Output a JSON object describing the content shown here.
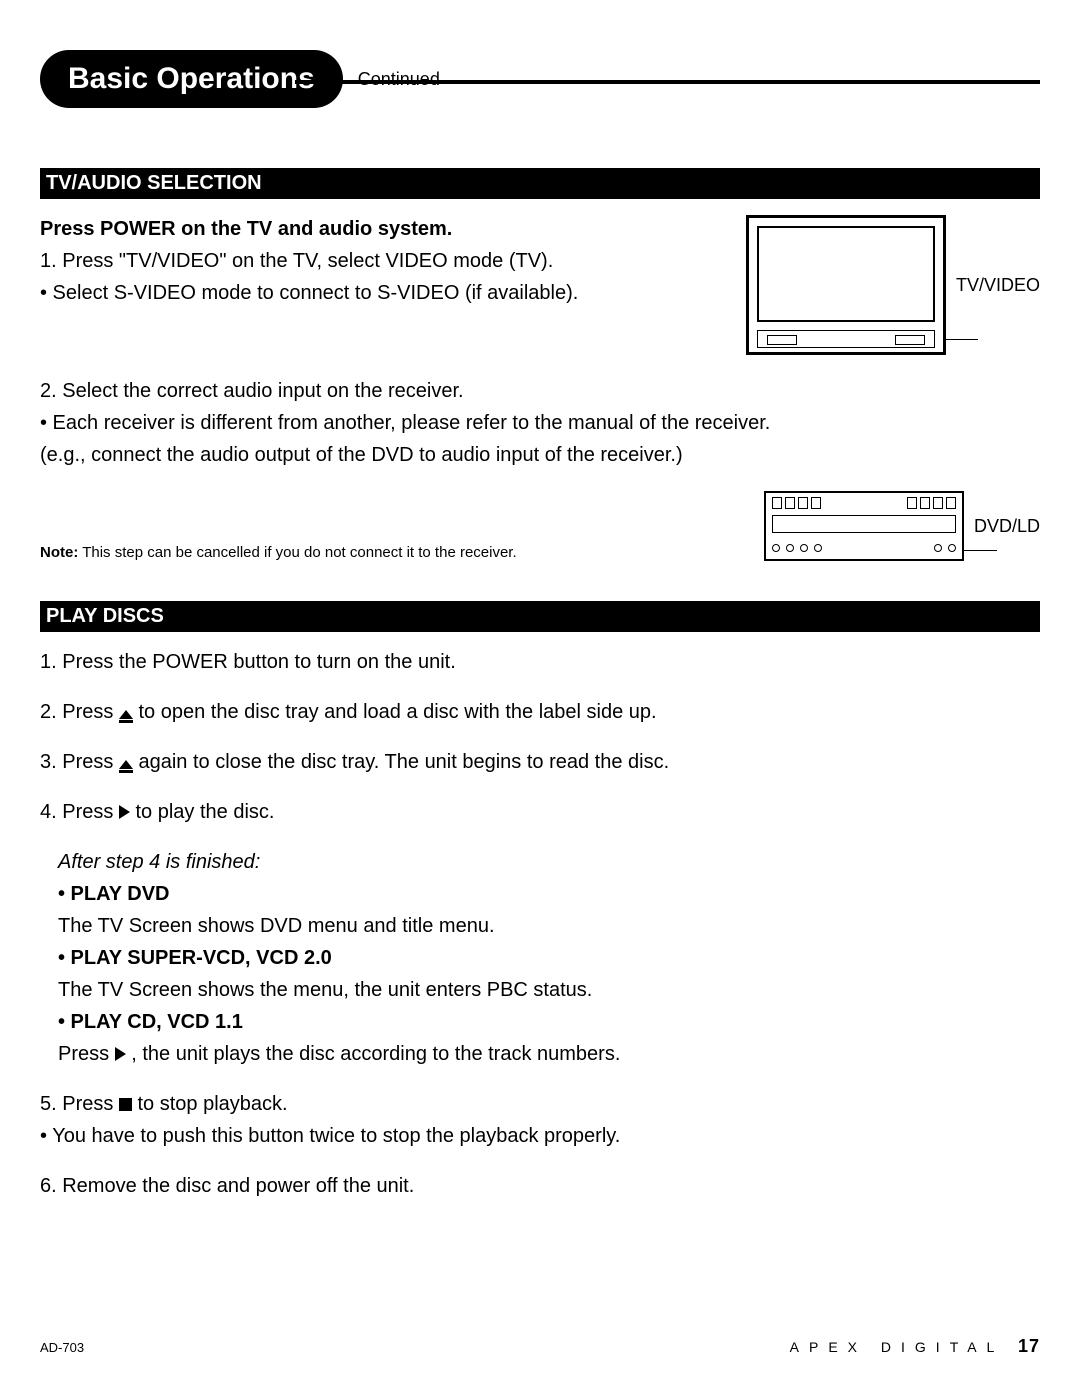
{
  "page": {
    "title": "Basic Operations",
    "continued": "Continued",
    "model": "AD-703",
    "brand": "APEX DIGITAL",
    "page_number": "17"
  },
  "section1": {
    "heading": "TV/AUDIO SELECTION",
    "lead": "Press POWER on the TV and audio system.",
    "step1": "1. Press \"TV/VIDEO\" on the TV, select VIDEO mode (TV).",
    "bullet1": "• Select S-VIDEO mode to connect to S-VIDEO (if available).",
    "step2": "2. Select the correct audio input on the receiver.",
    "bullet2": "• Each receiver is different from another, please refer to the manual of the receiver.",
    "eg": "(e.g., connect the audio output of the DVD to audio input of the receiver.)",
    "note_label": "Note:",
    "note_text": " This step can be cancelled if you do not connect it to the receiver.",
    "fig1_label": "TV/VIDEO",
    "fig2_label": "DVD/LD"
  },
  "section2": {
    "heading": "PLAY DISCS",
    "step1": "1. Press the POWER button to turn on the unit.",
    "step2a": "2. Press ",
    "step2b": " to open the disc tray and load a disc with the label side up.",
    "step3a": "3. Press ",
    "step3b": " again to close the disc tray.  The unit begins to read the disc.",
    "step4a": "4. Press ",
    "step4b": " to play the disc.",
    "after4": "After step 4 is finished:",
    "dvd_h": "• PLAY DVD",
    "dvd_t": "The TV Screen shows DVD menu and title menu.",
    "svcd_h": "• PLAY SUPER-VCD, VCD 2.0",
    "svcd_t": "The TV Screen shows the menu, the unit enters PBC status.",
    "cd_h": "• PLAY CD, VCD 1.1",
    "cd_ta": "Press ",
    "cd_tb": " , the unit plays the disc according to the track numbers.",
    "step5a": "5. Press  ",
    "step5b": "  to stop playback.",
    "bullet5": "• You have to push this button twice to stop the playback properly.",
    "step6": "6. Remove the disc and power off the unit."
  }
}
